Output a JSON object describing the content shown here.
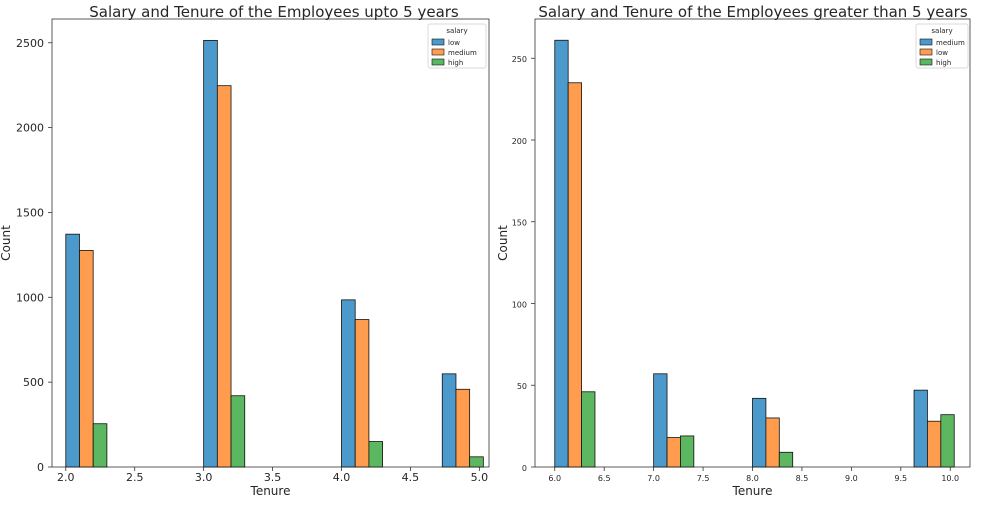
{
  "chart_data": [
    {
      "type": "bar",
      "title": "Salary and Tenure of the Employees upto 5 years",
      "xlabel": "Tenure",
      "ylabel": "Count",
      "xlim": [
        1.9,
        5.07
      ],
      "ylim": [
        0,
        2640
      ],
      "xticks": [
        "2.0",
        "2.5",
        "3.0",
        "3.5",
        "4.0",
        "4.5",
        "5.0"
      ],
      "yticks": [
        "0",
        "500",
        "1000",
        "1500",
        "2000",
        "2500"
      ],
      "legend": {
        "title": "salary",
        "position": "top-right"
      },
      "categories": [
        2.0,
        3.0,
        4.0,
        5.0
      ],
      "series": [
        {
          "name": "low",
          "color": "#4c9acb",
          "values": [
            1372,
            2514,
            985,
            549
          ]
        },
        {
          "name": "medium",
          "color": "#ff9c4d",
          "values": [
            1276,
            2247,
            869,
            458
          ]
        },
        {
          "name": "high",
          "color": "#5cb860",
          "values": [
            255,
            420,
            150,
            60
          ]
        }
      ]
    },
    {
      "type": "bar",
      "title": "Salary and Tenure of the Employees greater than 5 years",
      "xlabel": "Tenure",
      "ylabel": "Count",
      "xlim": [
        5.8,
        10.2
      ],
      "ylim": [
        0,
        274
      ],
      "xticks": [
        "6.0",
        "6.5",
        "7.0",
        "7.5",
        "8.0",
        "8.5",
        "9.0",
        "9.5",
        "10.0"
      ],
      "yticks": [
        "0",
        "50",
        "100",
        "150",
        "200",
        "250"
      ],
      "legend": {
        "title": "salary",
        "position": "top-right"
      },
      "categories": [
        6.0,
        7.0,
        8.0,
        10.0
      ],
      "series": [
        {
          "name": "medium",
          "color": "#4c9acb",
          "values": [
            261,
            57,
            42,
            47
          ]
        },
        {
          "name": "low",
          "color": "#ff9c4d",
          "values": [
            235,
            18,
            30,
            28
          ]
        },
        {
          "name": "high",
          "color": "#5cb860",
          "values": [
            46,
            19,
            9,
            32
          ]
        }
      ]
    }
  ]
}
